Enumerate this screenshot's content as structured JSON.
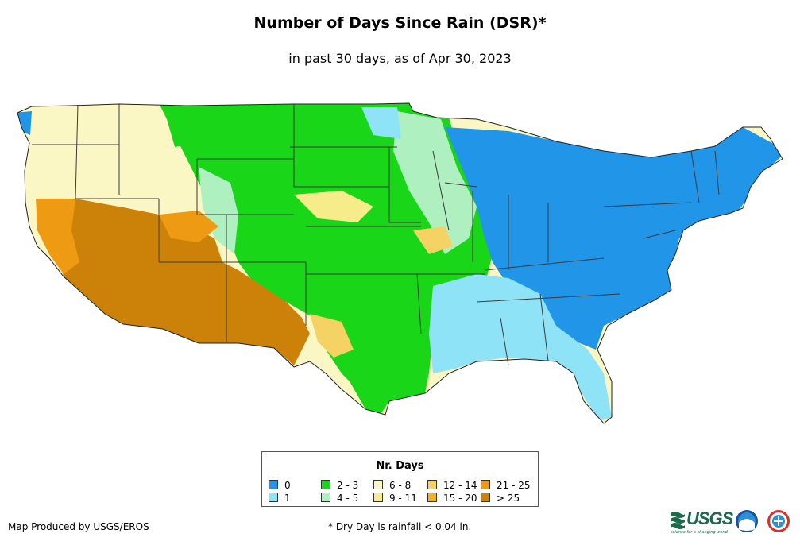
{
  "title": "Number of Days Since Rain (DSR)*",
  "subtitle": "in past 30 days, as of Apr 30, 2023",
  "legend": {
    "title": "Nr. Days",
    "items": [
      {
        "label": "0",
        "color": "#2196e8"
      },
      {
        "label": "1",
        "color": "#8fe3f6"
      },
      {
        "label": "2 - 3",
        "color": "#19d619"
      },
      {
        "label": "4 - 5",
        "color": "#aef0c0"
      },
      {
        "label": "6 - 8",
        "color": "#fbf7c4"
      },
      {
        "label": "9 - 11",
        "color": "#f7ec8a"
      },
      {
        "label": "12 - 14",
        "color": "#f4d264"
      },
      {
        "label": "15 - 20",
        "color": "#f2b21f"
      },
      {
        "label": "21 - 25",
        "color": "#ee9a12"
      },
      {
        "label": "> 25",
        "color": "#cc8208"
      }
    ]
  },
  "footer": {
    "credit": "Map Produced by USGS/EROS",
    "note": "* Dry Day is rainfall < 0.04 in."
  },
  "logos": {
    "usgs": "USGS",
    "usgs_tagline": "science for a changing world"
  },
  "colors": {
    "border": "#222222",
    "state_line": "#3a3a3a"
  }
}
